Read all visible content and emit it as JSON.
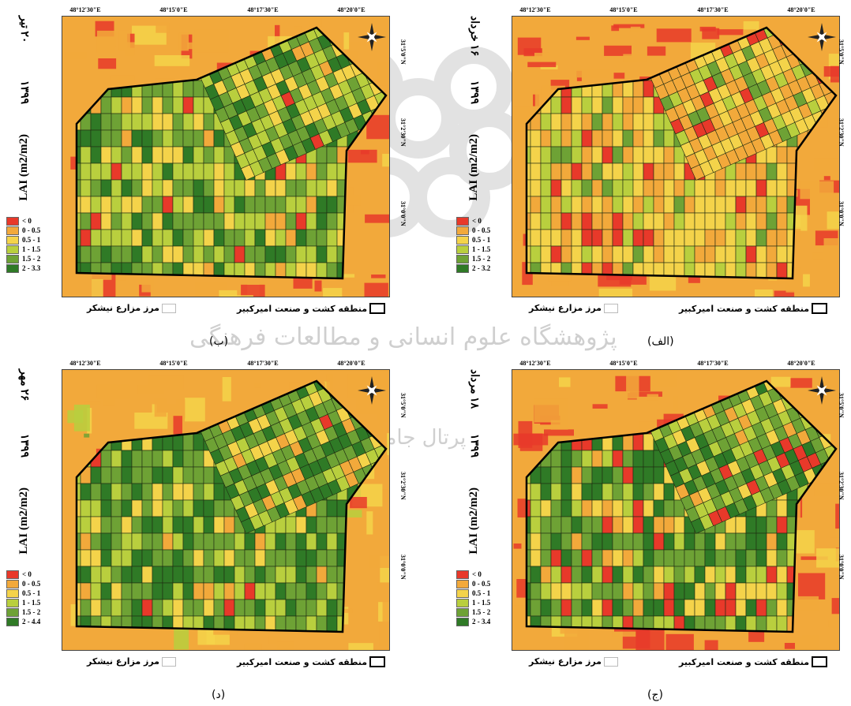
{
  "panels": [
    {
      "id": "b",
      "caption": "(ب)",
      "date_label": "۲۰ تیر",
      "year_label": "۱۳۹۹",
      "unit_label": "LAI (m2/m2)",
      "legend_classes": [
        {
          "label": "< 0",
          "color": "#e8392a"
        },
        {
          "label": "0 - 0.5",
          "color": "#f2a93b"
        },
        {
          "label": "0.5 - 1",
          "color": "#f4d34a"
        },
        {
          "label": "1 - 1.5",
          "color": "#b9cf3e"
        },
        {
          "label": "1.5 - 2",
          "color": "#6ea235"
        },
        {
          "label": "2 - 3.3",
          "color": "#2f7a26"
        }
      ],
      "legend_farm": "مرز مزارع نیشکر",
      "legend_zone": "منطقه کشت و صنعت امیرکبیر",
      "lon_ticks": [
        "48°12'30\"E",
        "48°15'0\"E",
        "48°17'30\"E",
        "48°20'0\"E"
      ],
      "lat_ticks": [
        "31°5'0\"N",
        "31°2'30\"N",
        "31°0'0\"N"
      ]
    },
    {
      "id": "alef",
      "caption": "(الف)",
      "date_label": "۱۶ خرداد",
      "year_label": "۱۳۹۹",
      "unit_label": "LAI (m2/m2)",
      "legend_classes": [
        {
          "label": "< 0",
          "color": "#e8392a"
        },
        {
          "label": "0 - 0.5",
          "color": "#f2a93b"
        },
        {
          "label": "0.5 - 1",
          "color": "#f4d34a"
        },
        {
          "label": "1 - 1.5",
          "color": "#b9cf3e"
        },
        {
          "label": "1.5 - 2",
          "color": "#6ea235"
        },
        {
          "label": "2 - 3.2",
          "color": "#2f7a26"
        }
      ],
      "legend_farm": "مرز مزارع نیشکر",
      "legend_zone": "منطقه کشت و صنعت امیرکبیر",
      "lon_ticks": [
        "48°12'30\"E",
        "48°15'0\"E",
        "48°17'30\"E",
        "48°20'0\"E"
      ],
      "lat_ticks": [
        "31°5'0\"N",
        "31°2'30\"N",
        "31°0'0\"N"
      ]
    },
    {
      "id": "d",
      "caption": "(د)",
      "date_label": "۲۶ مهر",
      "year_label": "۱۳۹۹",
      "unit_label": "LAI (m2/m2)",
      "legend_classes": [
        {
          "label": "< 0",
          "color": "#e8392a"
        },
        {
          "label": "0 - 0.5",
          "color": "#f2a93b"
        },
        {
          "label": "0.5 - 1",
          "color": "#f4d34a"
        },
        {
          "label": "1 - 1.5",
          "color": "#b9cf3e"
        },
        {
          "label": "1.5 - 2",
          "color": "#6ea235"
        },
        {
          "label": "2 - 4.4",
          "color": "#2f7a26"
        }
      ],
      "legend_farm": "مرز مزارع نیشکر",
      "legend_zone": "منطقه کشت و صنعت امیرکبیر",
      "lon_ticks": [
        "48°12'30\"E",
        "48°15'0\"E",
        "48°17'30\"E",
        "48°20'0\"E"
      ],
      "lat_ticks": [
        "31°5'0\"N",
        "31°2'30\"N",
        "31°0'0\"N"
      ]
    },
    {
      "id": "j",
      "caption": "(ج)",
      "date_label": "۱۸ مرداد",
      "year_label": "۱۳۹۹",
      "unit_label": "LAI (m2/m2)",
      "legend_classes": [
        {
          "label": "< 0",
          "color": "#e8392a"
        },
        {
          "label": "0 - 0.5",
          "color": "#f2a93b"
        },
        {
          "label": "0.5 - 1",
          "color": "#f4d34a"
        },
        {
          "label": "1 - 1.5",
          "color": "#b9cf3e"
        },
        {
          "label": "1.5 - 2",
          "color": "#6ea235"
        },
        {
          "label": "2 - 3.4",
          "color": "#2f7a26"
        }
      ],
      "legend_farm": "مرز مزارع نیشکر",
      "legend_zone": "منطقه کشت و صنعت امیرکبیر",
      "lon_ticks": [
        "48°12'30\"E",
        "48°15'0\"E",
        "48°17'30\"E",
        "48°20'0\"E"
      ],
      "lat_ticks": [
        "31°5'0\"N",
        "31°2'30\"N",
        "31°0'0\"N"
      ]
    }
  ],
  "watermark": {
    "line1": "پژوهشگاه علوم انسانی و مطالعات فرهنگی",
    "line2": "پرتال جامع علوم انسانی"
  }
}
